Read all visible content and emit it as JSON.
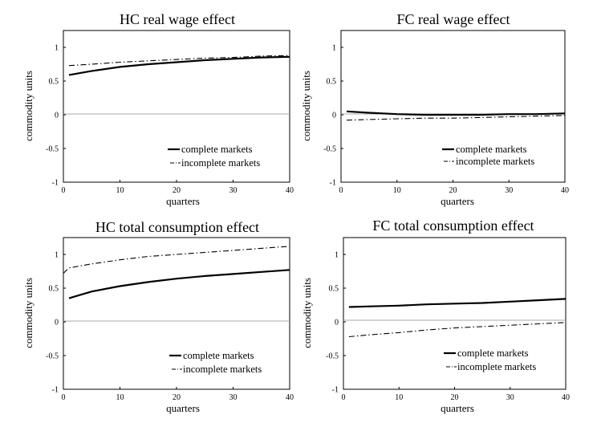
{
  "chart_data": [
    {
      "type": "line",
      "title": "HC real wage effect",
      "xlabel": "quarters",
      "ylabel": "commodity units",
      "xlim": [
        0,
        40
      ],
      "ylim": [
        -1,
        1.25
      ],
      "xticks": [
        "0",
        "10",
        "20",
        "30",
        "40"
      ],
      "yticks": [
        "-1",
        "-0.5",
        "0",
        "0.5",
        "1"
      ],
      "grid": false,
      "legend_position": "bottom-right",
      "series": [
        {
          "name": "complete markets",
          "style": "solid",
          "x": [
            1,
            5,
            10,
            15,
            20,
            25,
            30,
            35,
            40
          ],
          "y": [
            0.59,
            0.65,
            0.71,
            0.75,
            0.78,
            0.81,
            0.83,
            0.85,
            0.86
          ]
        },
        {
          "name": "incomplete markets",
          "style": "dash-dot",
          "x": [
            1,
            5,
            10,
            15,
            20,
            25,
            30,
            35,
            40
          ],
          "y": [
            0.73,
            0.75,
            0.78,
            0.8,
            0.82,
            0.84,
            0.85,
            0.87,
            0.88
          ]
        }
      ]
    },
    {
      "type": "line",
      "title": "FC real wage effect",
      "xlabel": "quarters",
      "ylabel": "commodity units",
      "xlim": [
        0,
        40
      ],
      "ylim": [
        -1,
        1.25
      ],
      "xticks": [
        "0",
        "10",
        "20",
        "30",
        "40"
      ],
      "yticks": [
        "-1",
        "-0.5",
        "0",
        "0.5",
        "1"
      ],
      "grid": false,
      "legend_position": "bottom-right",
      "series": [
        {
          "name": "complete markets",
          "style": "solid",
          "x": [
            1,
            5,
            10,
            15,
            20,
            25,
            30,
            35,
            40
          ],
          "y": [
            0.05,
            0.03,
            0.01,
            0.0,
            0.0,
            0.0,
            0.01,
            0.01,
            0.02
          ]
        },
        {
          "name": "incomplete markets",
          "style": "dash-dot",
          "x": [
            1,
            5,
            10,
            15,
            20,
            25,
            30,
            35,
            40
          ],
          "y": [
            -0.08,
            -0.07,
            -0.06,
            -0.05,
            -0.05,
            -0.04,
            -0.03,
            -0.02,
            -0.01
          ]
        }
      ]
    },
    {
      "type": "line",
      "title": "HC total consumption effect",
      "xlabel": "quarters",
      "ylabel": "commodity units",
      "xlim": [
        0,
        40
      ],
      "ylim": [
        -1,
        1.25
      ],
      "xticks": [
        "0",
        "10",
        "20",
        "30",
        "40"
      ],
      "yticks": [
        "-1",
        "-0.5",
        "0",
        "0.5",
        "1"
      ],
      "grid": false,
      "legend_position": "bottom-right",
      "series": [
        {
          "name": "complete markets",
          "style": "solid",
          "x": [
            1,
            5,
            10,
            15,
            20,
            25,
            30,
            35,
            40
          ],
          "y": [
            0.35,
            0.45,
            0.53,
            0.59,
            0.64,
            0.68,
            0.71,
            0.74,
            0.77
          ]
        },
        {
          "name": "incomplete markets",
          "style": "dash-dot",
          "x": [
            0,
            1,
            5,
            10,
            15,
            20,
            25,
            30,
            35,
            40
          ],
          "y": [
            0.72,
            0.8,
            0.86,
            0.92,
            0.97,
            1.0,
            1.03,
            1.06,
            1.09,
            1.12
          ]
        }
      ]
    },
    {
      "type": "line",
      "title": "FC total consumption effect",
      "xlabel": "quarters",
      "ylabel": "commodity units",
      "xlim": [
        0,
        40
      ],
      "ylim": [
        -1,
        1.25
      ],
      "xticks": [
        "0",
        "10",
        "20",
        "30",
        "40"
      ],
      "yticks": [
        "-1",
        "-0.5",
        "0",
        "0.5",
        "1"
      ],
      "grid": false,
      "legend_position": "bottom-right",
      "series": [
        {
          "name": "complete markets",
          "style": "solid",
          "x": [
            1,
            5,
            10,
            15,
            20,
            25,
            30,
            35,
            40
          ],
          "y": [
            0.22,
            0.23,
            0.24,
            0.26,
            0.27,
            0.28,
            0.3,
            0.32,
            0.34
          ]
        },
        {
          "name": "incomplete markets",
          "style": "dash-dot",
          "x": [
            1,
            5,
            10,
            15,
            20,
            25,
            30,
            35,
            40
          ],
          "y": [
            -0.22,
            -0.19,
            -0.16,
            -0.12,
            -0.09,
            -0.07,
            -0.05,
            -0.03,
            -0.01
          ]
        }
      ]
    }
  ]
}
